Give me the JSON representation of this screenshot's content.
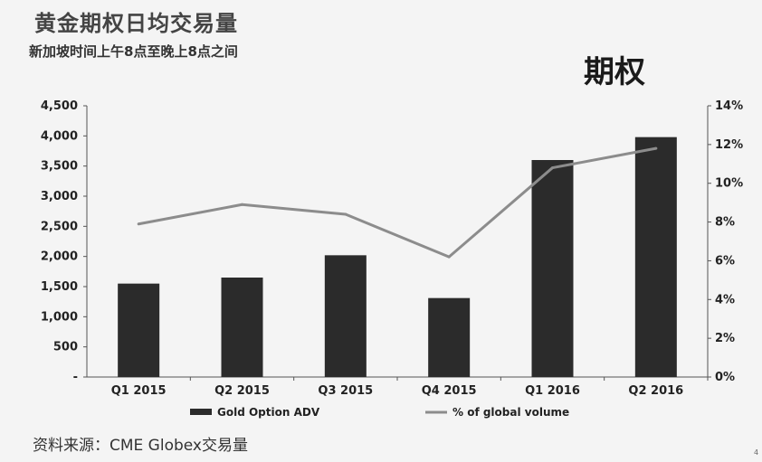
{
  "header": {
    "title": "黄金期权日均交易量",
    "subtitle": "新加坡时间上午8点至晚上8点之间",
    "tag": "期权"
  },
  "footer": {
    "source": "资料来源：CME Globex交易量",
    "corner_mark": "4"
  },
  "colors": {
    "bar": "#2b2b2b",
    "line": "#8c8c8c",
    "axis": "#555555"
  },
  "chart_data": {
    "type": "bar",
    "categories": [
      "Q1 2015",
      "Q2 2015",
      "Q3 2015",
      "Q4 2015",
      "Q1 2016",
      "Q2 2016"
    ],
    "series": [
      {
        "name": "Gold Option ADV",
        "type": "bar",
        "axis": "left",
        "values": [
          1550,
          1650,
          2020,
          1310,
          3600,
          3980
        ]
      },
      {
        "name": "% of global volume",
        "type": "line",
        "axis": "right",
        "values": [
          7.9,
          8.9,
          8.4,
          6.2,
          10.8,
          11.8
        ]
      }
    ],
    "y_left": {
      "ylim": [
        0,
        4500
      ],
      "tick_labels": [
        "-",
        "500",
        "1,000",
        "1,500",
        "2,000",
        "2,500",
        "3,000",
        "3,500",
        "4,000",
        "4,500"
      ]
    },
    "y_right": {
      "ylim": [
        0,
        14
      ],
      "tick_labels": [
        "0%",
        "2%",
        "4%",
        "6%",
        "8%",
        "10%",
        "12%",
        "14%"
      ]
    },
    "legend_position": "bottom",
    "grid": false
  }
}
